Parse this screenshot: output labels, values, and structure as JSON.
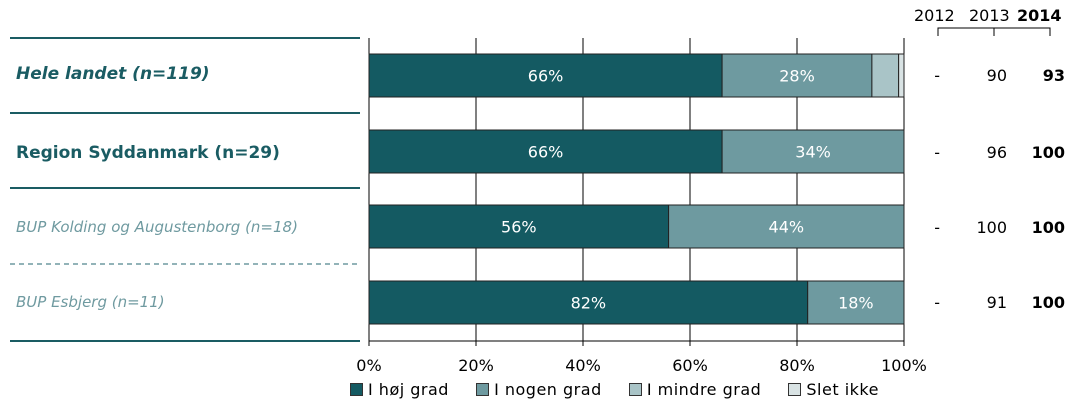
{
  "chart_data": {
    "type": "bar",
    "stacked": true,
    "orientation": "horizontal",
    "categories": [
      "Hele landet (n=119)",
      "Region Syddanmark (n=29)",
      "BUP Kolding og Augustenborg (n=18)",
      "BUP Esbjerg (n=11)"
    ],
    "series": [
      {
        "name": "I høj grad",
        "values": [
          66,
          66,
          56,
          82
        ],
        "labels": [
          "66%",
          "66%",
          "56%",
          "82%"
        ],
        "color": "#145a62"
      },
      {
        "name": "I nogen grad",
        "values": [
          28,
          34,
          44,
          18
        ],
        "labels": [
          "28%",
          "34%",
          "44%",
          "18%"
        ],
        "color": "#6e9aa0"
      },
      {
        "name": "I mindre grad",
        "values": [
          5,
          0,
          0,
          0
        ],
        "labels": [
          "",
          "",
          "",
          ""
        ],
        "color": "#a9c4c7"
      },
      {
        "name": "Slet ikke",
        "values": [
          1,
          0,
          0,
          0
        ],
        "labels": [
          "",
          "",
          "",
          ""
        ],
        "color": "#d9e3e4"
      }
    ],
    "xlim": [
      0,
      100
    ],
    "x_ticks": [
      "0%",
      "20%",
      "40%",
      "60%",
      "80%",
      "100%"
    ],
    "grid": true,
    "legend_position": "bottom",
    "history": {
      "years": [
        "2012",
        "2013",
        "2014"
      ],
      "values": [
        [
          "-",
          "90",
          "93"
        ],
        [
          "-",
          "96",
          "100"
        ],
        [
          "-",
          "100",
          "100"
        ],
        [
          "-",
          "91",
          "100"
        ]
      ]
    }
  }
}
